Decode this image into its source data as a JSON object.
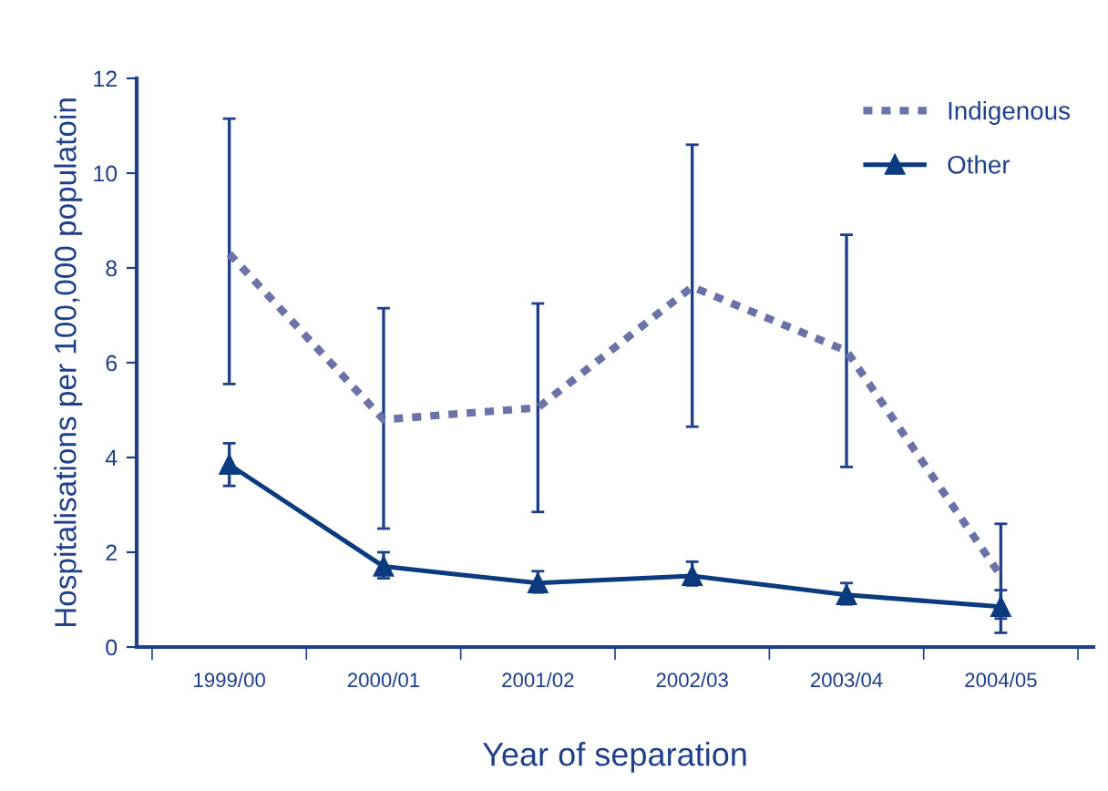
{
  "chart_data": {
    "type": "line",
    "xlabel": "Year of separation",
    "ylabel": "Hospitalisations per 100,000 populatoin",
    "categories": [
      "1999/00",
      "2000/01",
      "2001/02",
      "2002/03",
      "2003/04",
      "2004/05"
    ],
    "series": [
      {
        "name": "Indigenous",
        "color": "#6b72a8",
        "line_style": "dotted",
        "marker": "none",
        "values": [
          8.3,
          4.8,
          5.05,
          7.6,
          6.25,
          1.5
        ],
        "errors": [
          [
            5.55,
            11.15
          ],
          [
            2.5,
            7.15
          ],
          [
            2.85,
            7.25
          ],
          [
            4.65,
            10.6
          ],
          [
            3.8,
            8.7
          ],
          [
            0.3,
            2.6
          ]
        ]
      },
      {
        "name": "Other",
        "color": "#0b3a7f",
        "line_style": "solid",
        "marker": "triangle",
        "values": [
          3.85,
          1.7,
          1.35,
          1.5,
          1.1,
          0.85
        ],
        "errors": [
          [
            3.4,
            4.3
          ],
          [
            1.45,
            2.0
          ],
          [
            1.15,
            1.6
          ],
          [
            1.3,
            1.8
          ],
          [
            0.9,
            1.35
          ],
          [
            0.6,
            1.2
          ]
        ]
      }
    ],
    "ylim": [
      0,
      12
    ],
    "yticks": [
      0,
      2,
      4,
      6,
      8,
      10,
      12
    ],
    "grid": false,
    "legend": "top right"
  }
}
